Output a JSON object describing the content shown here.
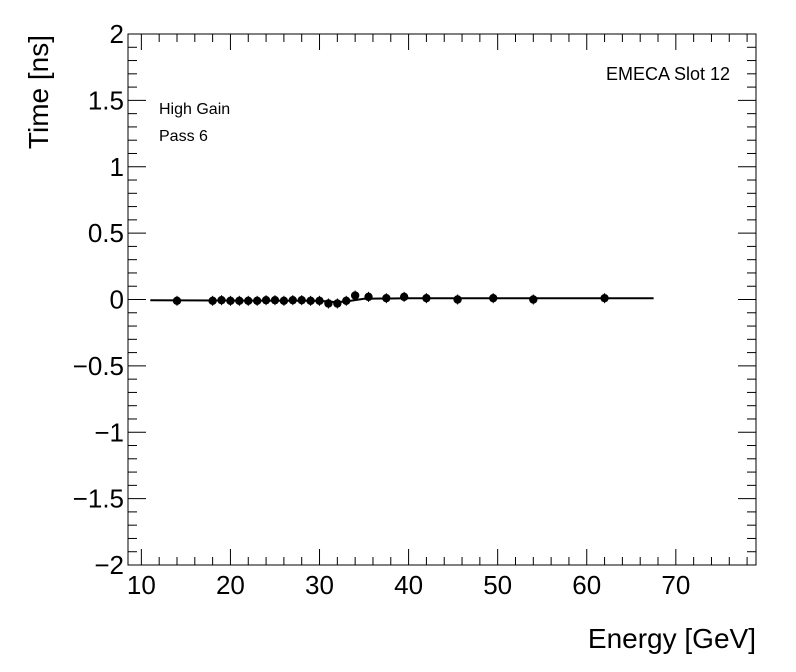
{
  "chart_data": {
    "type": "scatter",
    "title": "EMECA Slot 12",
    "annotations": [
      "High Gain",
      "Pass 6"
    ],
    "xlabel": "Energy [GeV]",
    "ylabel": "Time [ns]",
    "xlim": [
      8.5,
      79
    ],
    "ylim": [
      -2,
      2
    ],
    "x_ticks": [
      10,
      20,
      30,
      40,
      50,
      60,
      70
    ],
    "x_tick_labels": [
      "10",
      "20",
      "30",
      "40",
      "50",
      "60",
      "70"
    ],
    "y_ticks": [
      -2,
      -1.5,
      -1,
      -0.5,
      0,
      0.5,
      1,
      1.5,
      2
    ],
    "y_tick_labels": [
      "−2",
      "−1.5",
      "−1",
      "−0.5",
      "0",
      "0.5",
      "1",
      "1.5",
      "2"
    ],
    "grid": false,
    "series": [
      {
        "name": "data",
        "x": [
          14.0,
          18.0,
          19.0,
          20.0,
          21.0,
          22.0,
          23.0,
          24.0,
          25.0,
          26.0,
          27.0,
          28.0,
          29.0,
          30.0,
          31.0,
          32.0,
          33.0,
          34.0,
          35.5,
          37.5,
          39.5,
          42.0,
          45.5,
          49.5,
          54.0,
          62.0
        ],
        "y": [
          -0.01,
          -0.01,
          -0.005,
          -0.01,
          -0.01,
          -0.01,
          -0.01,
          -0.005,
          -0.005,
          -0.01,
          -0.005,
          -0.005,
          -0.01,
          -0.01,
          -0.03,
          -0.03,
          -0.01,
          0.03,
          0.02,
          0.01,
          0.02,
          0.01,
          0.0,
          0.01,
          0.0,
          0.01
        ]
      }
    ],
    "fit": {
      "name": "fit",
      "x": [
        11.0,
        30.0,
        32.0,
        33.5,
        35.0,
        40.0,
        50.0,
        67.5
      ],
      "y": [
        -0.005,
        -0.01,
        -0.02,
        -0.01,
        0.005,
        0.01,
        0.01,
        0.01
      ]
    }
  }
}
